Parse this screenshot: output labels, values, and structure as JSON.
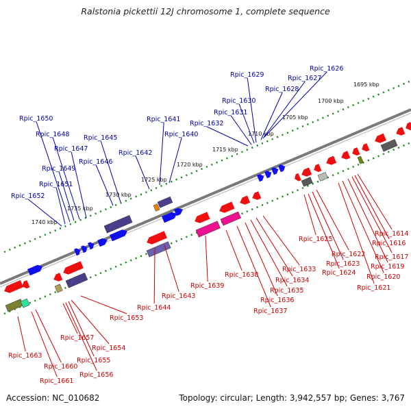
{
  "title": "Ralstonia pickettii 12J chromosome 1, complete sequence",
  "footer": {
    "accession": "Accession: NC_010682",
    "topology": "Topology: circular; Length: 3,942,557 bp; Genes: 3,767"
  },
  "colors": {
    "backbone": "#7a7a7a",
    "forward_gene": "#1010ee",
    "reverse_gene": "#ee1010",
    "forward_label": "#0000aa",
    "reverse_label": "#cc0000",
    "tick": "#118811"
  },
  "scale_labels": [
    "1695 kbp",
    "1700 kbp",
    "1705 kbp",
    "1710 kbp",
    "1715 kbp",
    "1720 kbp",
    "1725 kbp",
    "1730 kbp",
    "1735 kbp",
    "1740 kbp"
  ],
  "forward_genes": [
    "Rpic_1626",
    "Rpic_1627",
    "Rpic_1628",
    "Rpic_1629",
    "Rpic_1630",
    "Rpic_1631",
    "Rpic_1632",
    "Rpic_1640",
    "Rpic_1641",
    "Rpic_1642",
    "Rpic_1645",
    "Rpic_1646",
    "Rpic_1647",
    "Rpic_1648",
    "Rpic_1649",
    "Rpic_1650",
    "Rpic_1651",
    "Rpic_1652"
  ],
  "reverse_genes": [
    "Rpic_1614",
    "Rpic_1616",
    "Rpic_1617",
    "Rpic_1619",
    "Rpic_1620",
    "Rpic_1621",
    "Rpic_1622",
    "Rpic_1623",
    "Rpic_1624",
    "Rpic_1625",
    "Rpic_1633",
    "Rpic_1634",
    "Rpic_1635",
    "Rpic_1636",
    "Rpic_1637",
    "Rpic_1638",
    "Rpic_1639",
    "Rpic_1643",
    "Rpic_1644",
    "Rpic_1653",
    "Rpic_1654",
    "Rpic_1655",
    "Rpic_1656",
    "Rpic_1657",
    "Rpic_1660",
    "Rpic_1661",
    "Rpic_1663"
  ]
}
